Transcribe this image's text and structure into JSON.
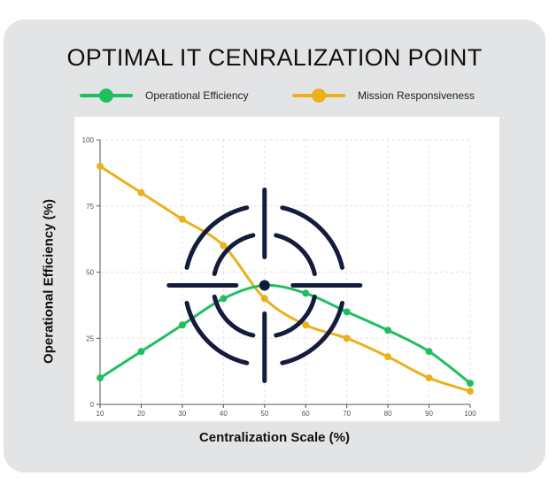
{
  "title": "OPTIMAL IT CENRALIZATION POINT",
  "colors": {
    "efficiency": "#1fbf5f",
    "responsiveness": "#ebb11a",
    "target": "#141b3c"
  },
  "legend": [
    {
      "label": "Operational Efficiency",
      "color": "#1fbf5f"
    },
    {
      "label": "Mission Responsiveness",
      "color": "#ebb11a"
    }
  ],
  "chart_data": {
    "type": "line",
    "title": "OPTIMAL IT CENRALIZATION POINT",
    "xlabel": "Centralization Scale (%)",
    "ylabel": "Operational Efficiency (%)",
    "x": [
      10,
      20,
      30,
      40,
      50,
      60,
      70,
      80,
      90,
      100
    ],
    "xticks": [
      10,
      20,
      30,
      40,
      50,
      60,
      70,
      80,
      90,
      100
    ],
    "yticks": [
      0,
      25,
      50,
      75,
      100
    ],
    "xlim": [
      10,
      100
    ],
    "ylim": [
      0,
      100
    ],
    "grid": true,
    "legend_position": "top",
    "series": [
      {
        "name": "Operational Efficiency",
        "color": "#1fbf5f",
        "values": [
          10,
          20,
          30,
          40,
          45,
          42,
          35,
          28,
          20,
          8
        ]
      },
      {
        "name": "Mission Responsiveness",
        "color": "#ebb11a",
        "values": [
          90,
          80,
          70,
          60,
          40,
          30,
          25,
          18,
          10,
          5
        ]
      }
    ],
    "annotation": {
      "type": "crosshair-target-icon",
      "x": 50,
      "y": 45
    }
  }
}
